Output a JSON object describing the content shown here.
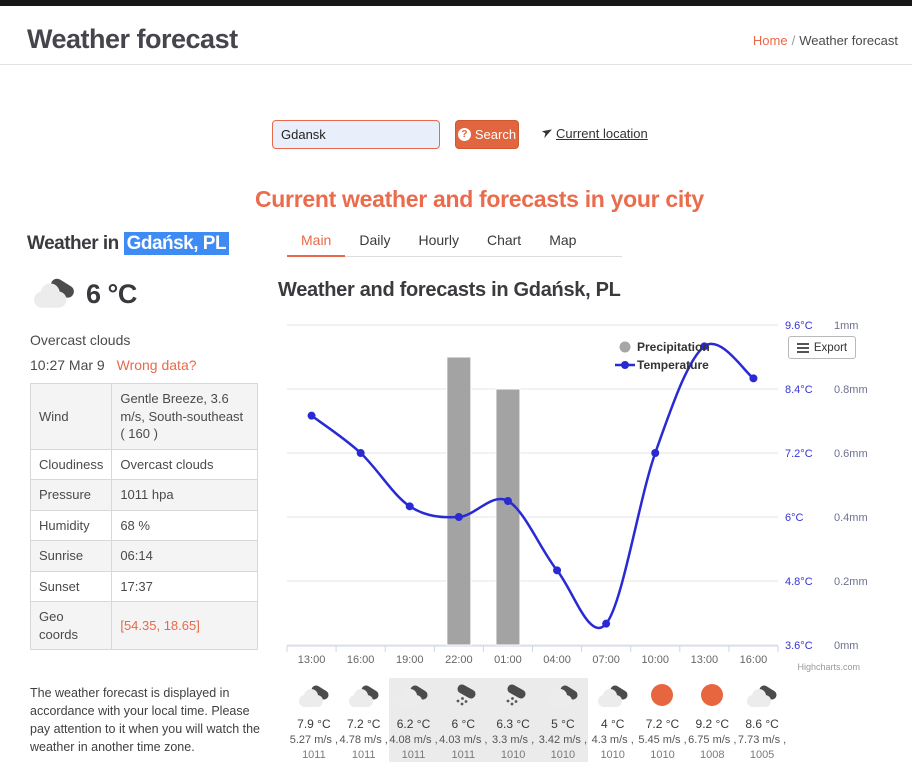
{
  "header": {
    "title": "Weather forecast",
    "breadcrumb": {
      "home": "Home",
      "separator": "/",
      "current": "Weather forecast"
    }
  },
  "search": {
    "value": "Gdansk",
    "button_label": "Search",
    "button_icon": "?",
    "current_location_label": "Current location"
  },
  "page_heading": "Current weather and forecasts in your city",
  "tabs": [
    {
      "label": "Main",
      "active": true
    },
    {
      "label": "Daily",
      "active": false
    },
    {
      "label": "Hourly",
      "active": false
    },
    {
      "label": "Chart",
      "active": false
    },
    {
      "label": "Map",
      "active": false
    }
  ],
  "left_panel": {
    "title_prefix": "Weather in ",
    "title_city": "Gdańsk, PL",
    "temperature": "6 °C",
    "condition": "Overcast clouds",
    "time": "10:27 Mar 9",
    "wrong_data_label": "Wrong data?",
    "details": [
      {
        "label": "Wind",
        "value": "Gentle Breeze, 3.6 m/s, South-southeast ( 160 )",
        "accent": false
      },
      {
        "label": "Cloudiness",
        "value": "Overcast clouds",
        "accent": false
      },
      {
        "label": "Pressure",
        "value": "1011 hpa",
        "accent": false
      },
      {
        "label": "Humidity",
        "value": "68 %",
        "accent": false
      },
      {
        "label": "Sunrise",
        "value": "06:14",
        "accent": false
      },
      {
        "label": "Sunset",
        "value": "17:37",
        "accent": false
      },
      {
        "label": "Geo coords",
        "value": "[54.35, 18.65]",
        "accent": true
      }
    ],
    "footnote": "The weather forecast is displayed in accordance with your local time. Please pay attention to it when you will watch the weather in another time zone."
  },
  "chart": {
    "title": "Weather and forecasts in Gdańsk, PL",
    "export_label": "Export",
    "credit": "Highcharts.com"
  },
  "chart_data": {
    "type": "line+bar",
    "x": [
      "13:00",
      "16:00",
      "19:00",
      "22:00",
      "01:00",
      "04:00",
      "07:00",
      "10:00",
      "13:00",
      "16:00"
    ],
    "series": [
      {
        "name": "Precipitation",
        "type": "bar",
        "values": [
          0,
          0,
          0,
          0.9,
          0.8,
          0,
          0,
          0,
          0,
          0
        ],
        "color": "#a3a3a3",
        "yaxis": "mm"
      },
      {
        "name": "Temperature",
        "type": "line",
        "values": [
          7.9,
          7.2,
          6.2,
          6,
          6.3,
          5,
          4,
          7.2,
          9.2,
          8.6
        ],
        "color": "#2a2ad4",
        "yaxis": "°C"
      }
    ],
    "yaxes": [
      {
        "side": "right",
        "unit": "°C",
        "min": 3.6,
        "max": 9.6,
        "ticks": [
          "3.6°C",
          "4.8°C",
          "6°C",
          "7.2°C",
          "8.4°C",
          "9.6°C"
        ],
        "label_color": "#3434d6"
      },
      {
        "side": "right",
        "unit": "mm",
        "min": 0,
        "max": 1,
        "ticks": [
          "0mm",
          "0.2mm",
          "0.4mm",
          "0.6mm",
          "0.8mm",
          "1mm"
        ],
        "label_color": "#6d7191"
      }
    ],
    "grid": true,
    "legend_position": "top-right"
  },
  "hourly": [
    {
      "icon": "clouds",
      "temp": "7.9 °C",
      "wind": "5.27 m/s ,",
      "pressure": "1011",
      "night": false
    },
    {
      "icon": "clouds",
      "temp": "7.2 °C",
      "wind": "4.78 m/s ,",
      "pressure": "1011",
      "night": false
    },
    {
      "icon": "clouds",
      "temp": "6.2 °C",
      "wind": "4.08 m/s ,",
      "pressure": "1011",
      "night": true
    },
    {
      "icon": "rain",
      "temp": "6 °C",
      "wind": "4.03 m/s ,",
      "pressure": "1011",
      "night": true
    },
    {
      "icon": "rain",
      "temp": "6.3 °C",
      "wind": "3.3 m/s ,",
      "pressure": "1010",
      "night": true
    },
    {
      "icon": "clouds",
      "temp": "5 °C",
      "wind": "3.42 m/s ,",
      "pressure": "1010",
      "night": true
    },
    {
      "icon": "clouds",
      "temp": "4 °C",
      "wind": "4.3 m/s ,",
      "pressure": "1010",
      "night": false
    },
    {
      "icon": "sun",
      "temp": "7.2 °C",
      "wind": "5.45 m/s ,",
      "pressure": "1010",
      "night": false
    },
    {
      "icon": "sun",
      "temp": "9.2 °C",
      "wind": "6.75 m/s ,",
      "pressure": "1008",
      "night": false
    },
    {
      "icon": "clouds",
      "temp": "8.6 °C",
      "wind": "7.73 m/s ,",
      "pressure": "1005",
      "night": false
    }
  ],
  "colors": {
    "accent": "#e8694a",
    "selection_blue": "#3e8bf3",
    "temperature_line": "#2a2ad4",
    "precipitation_bar": "#a3a3a3",
    "sun": "#e8663f",
    "night_cell": "#ebebeb"
  }
}
